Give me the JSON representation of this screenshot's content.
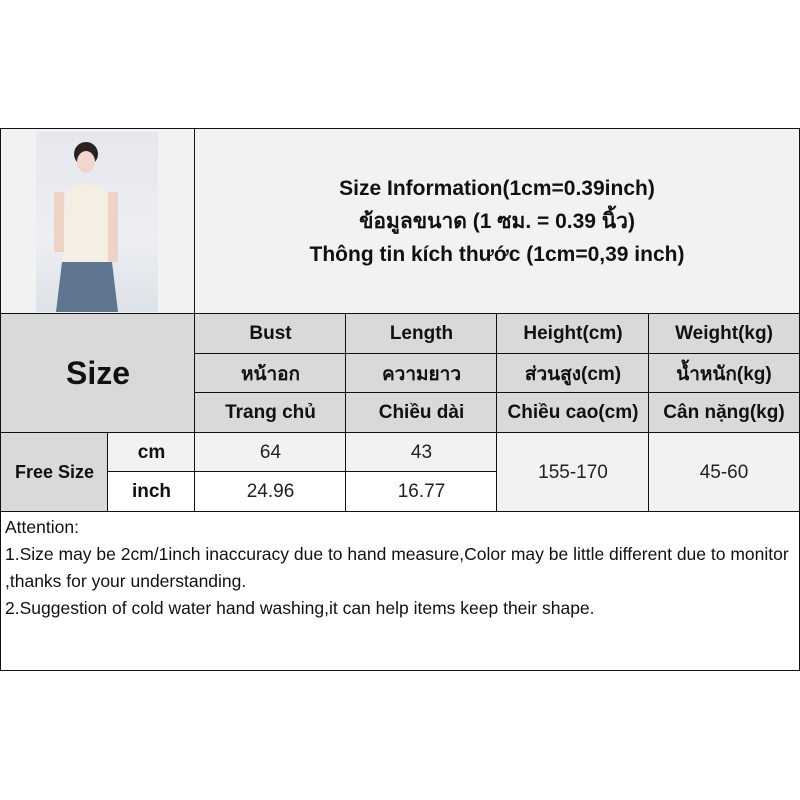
{
  "title": {
    "en": "Size Information(1cm=0.39inch)",
    "th": "ข้อมูลขนาด (1 ซม. = 0.39 นิ้ว)",
    "vi": "Thông tin kích thước (1cm=0,39 inch)"
  },
  "size_label": "Size",
  "columns": [
    {
      "en": "Bust",
      "th": "หน้าอก",
      "vi": "Trang chủ"
    },
    {
      "en": "Length",
      "th": "ความยาว",
      "vi": "Chiều dài"
    },
    {
      "en": "Height(cm)",
      "th": "ส่วนสูง(cm)",
      "vi": "Chiều cao(cm)"
    },
    {
      "en": "Weight(kg)",
      "th": "น้ำหนัก(kg)",
      "vi": "Cân nặng(kg)"
    }
  ],
  "rows": {
    "size_name": "Free Size",
    "cm": {
      "unit": "cm",
      "bust": "64",
      "length": "43"
    },
    "inch": {
      "unit": "inch",
      "bust": "24.96",
      "length": "16.77"
    },
    "height": "155-170",
    "weight": "45-60"
  },
  "attention": {
    "heading": "Attention:",
    "lines": [
      "1.Size may be 2cm/1inch inaccuracy due to hand measure,Color may be little different due to monitor ,thanks for your understanding.",
      "2.Suggestion of cold water hand washing,it can help items keep their shape."
    ]
  },
  "colors": {
    "header": "#d9d9d9",
    "light": "#f2f2f2",
    "border": "#111111"
  }
}
